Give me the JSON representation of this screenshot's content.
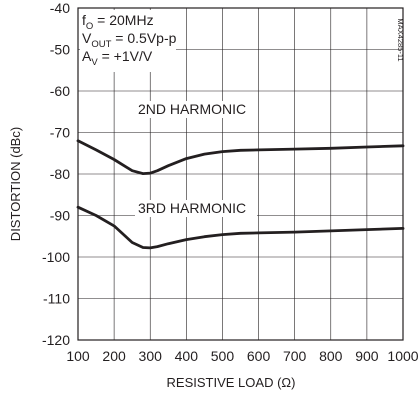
{
  "chart_data": {
    "type": "line",
    "title": "",
    "xlabel": "RESISTIVE LOAD (Ω)",
    "ylabel": "DISTORTION (dBc)",
    "xlim": [
      100,
      1000
    ],
    "ylim": [
      -120,
      -40
    ],
    "x_ticks": [
      "100",
      "200",
      "300",
      "400",
      "500",
      "600",
      "700",
      "800",
      "900",
      "1000"
    ],
    "y_ticks": [
      "-40",
      "-50",
      "-60",
      "-70",
      "-80",
      "-90",
      "-100",
      "-110",
      "-120"
    ],
    "grid": true,
    "conditions": [
      {
        "main": "f",
        "sub": "O",
        "rest": " = 20MHz"
      },
      {
        "main": "V",
        "sub": "OUT",
        "rest": " = 0.5Vp-p"
      },
      {
        "main": "A",
        "sub": "V",
        "rest": " = +1V/V"
      }
    ],
    "figure_code": "MAX4285-11",
    "series": [
      {
        "name": "2ND HARMONIC",
        "x": [
          100,
          150,
          200,
          250,
          280,
          300,
          320,
          350,
          400,
          450,
          500,
          550,
          600,
          700,
          800,
          900,
          1000
        ],
        "y": [
          -72,
          -74.2,
          -76.5,
          -79.2,
          -79.9,
          -79.8,
          -79.2,
          -78,
          -76.3,
          -75.2,
          -74.6,
          -74.3,
          -74.2,
          -74,
          -73.8,
          -73.5,
          -73.2
        ]
      },
      {
        "name": "3RD HARMONIC",
        "x": [
          100,
          150,
          200,
          250,
          280,
          300,
          320,
          350,
          400,
          450,
          500,
          550,
          600,
          700,
          800,
          900,
          1000
        ],
        "y": [
          -88,
          -90,
          -92.5,
          -96.5,
          -97.7,
          -97.8,
          -97.5,
          -96.8,
          -95.8,
          -95.1,
          -94.6,
          -94.3,
          -94.2,
          -94,
          -93.7,
          -93.4,
          -93.1
        ]
      }
    ]
  }
}
